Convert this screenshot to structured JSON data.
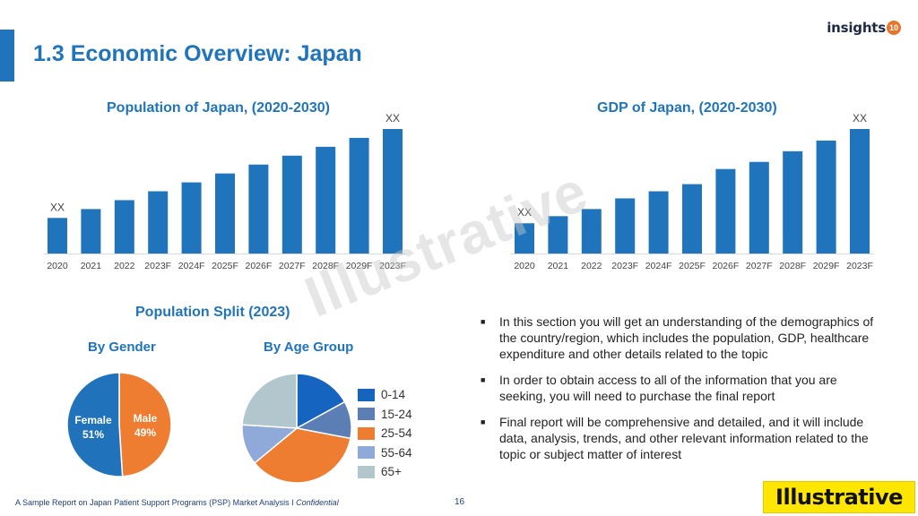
{
  "header": {
    "title": "1.3 Economic Overview: Japan",
    "logo_text": "insights",
    "logo_badge": "10"
  },
  "watermark": "Illustrative",
  "colors": {
    "accent": "#1f74bb",
    "bar": "#1f74bb",
    "male": "#ef7d31",
    "female": "#2072bb"
  },
  "chart_data": [
    {
      "type": "bar",
      "title": "Population of Japan, (2020-2030)",
      "categories": [
        "2020",
        "2021",
        "2022",
        "2023F",
        "2024F",
        "2025F",
        "2026F",
        "2027F",
        "2028F",
        "2029F",
        "2023F"
      ],
      "values": [
        4,
        5,
        6,
        7,
        8,
        9,
        10,
        11,
        12,
        13,
        14
      ],
      "data_labels": [
        "XX",
        "",
        "",
        "",
        "",
        "",
        "",
        "",
        "",
        "",
        "XX"
      ],
      "ylim": [
        0,
        14
      ]
    },
    {
      "type": "bar",
      "title": "GDP of Japan, (2020-2030)",
      "categories": [
        "2020",
        "2021",
        "2022",
        "2023F",
        "2024F",
        "2025F",
        "2026F",
        "2027F",
        "2028F",
        "2029F",
        "2023F"
      ],
      "values": [
        3.4,
        4.2,
        5.0,
        6.2,
        7.0,
        7.8,
        9.5,
        10.3,
        11.5,
        12.7,
        14.0
      ],
      "data_labels": [
        "XX",
        "",
        "",
        "",
        "",
        "",
        "",
        "",
        "",
        "",
        "XX"
      ],
      "ylim": [
        0,
        14
      ]
    },
    {
      "type": "pie",
      "title": "Population Split (2023)",
      "subtitle": "By Gender",
      "slices": [
        {
          "name": "Male",
          "value": 49,
          "label": "49%",
          "color": "#ef7d31"
        },
        {
          "name": "Female",
          "value": 51,
          "label": "51%",
          "color": "#2072bb"
        }
      ]
    },
    {
      "type": "pie",
      "subtitle": "By Age Group",
      "slices": [
        {
          "name": "0-14",
          "value": 17,
          "color": "#1565c0"
        },
        {
          "name": "15-24",
          "value": 11,
          "color": "#5b7fb5"
        },
        {
          "name": "25-54",
          "value": 36,
          "color": "#ef7d31"
        },
        {
          "name": "55-64",
          "value": 12,
          "color": "#8fa9d9"
        },
        {
          "name": "65+",
          "value": 24,
          "color": "#b1c7cd"
        }
      ]
    }
  ],
  "bullets": [
    "In this section you will get an understanding of the demographics of the country/region, which includes the population, GDP, healthcare expenditure and other details related to the topic",
    "In order to obtain access to all of the information that you are seeking, you will need to purchase the final report",
    "Final report will be comprehensive and detailed, and it will include data, analysis, trends, and other relevant information related to the topic or subject matter of interest"
  ],
  "footer": {
    "text": "A Sample Report on Japan Patient Support Programs (PSP) Market Analysis I ",
    "confidential": "Confidential",
    "page_number": "16",
    "stamp": "Illustrative"
  }
}
